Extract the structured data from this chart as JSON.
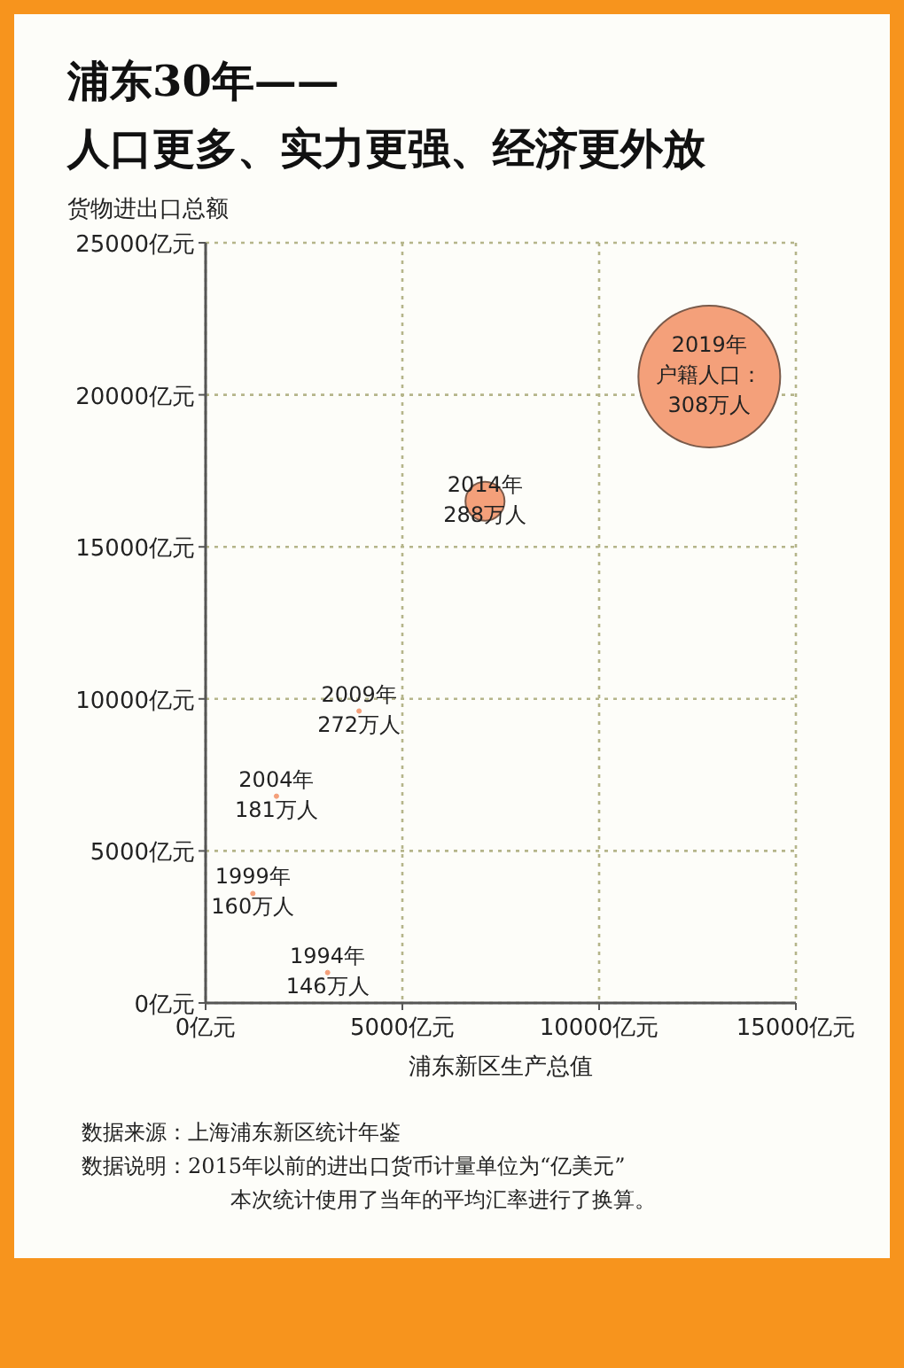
{
  "chart_data": {
    "type": "bubble",
    "title": "浦东30年——",
    "subtitle": "人口更多、实力更强、经济更外放",
    "xlabel": "浦东新区生产总值",
    "ylabel": "货物进出口总额",
    "xlim": [
      0,
      15000
    ],
    "ylim": [
      0,
      25000
    ],
    "xticks": [
      {
        "value": 0,
        "label": "0亿元"
      },
      {
        "value": 5000,
        "label": "5000亿元"
      },
      {
        "value": 10000,
        "label": "10000亿元"
      },
      {
        "value": 15000,
        "label": "15000亿元"
      }
    ],
    "yticks": [
      {
        "value": 0,
        "label": "0亿元"
      },
      {
        "value": 5000,
        "label": "5000亿元"
      },
      {
        "value": 10000,
        "label": "10000亿元"
      },
      {
        "value": 15000,
        "label": "15000亿元"
      },
      {
        "value": 20000,
        "label": "20000亿元"
      },
      {
        "value": 25000,
        "label": "25000亿元"
      }
    ],
    "grid": true,
    "series": [
      {
        "color": "#f4a07a",
        "x": [
          3100,
          1200,
          1800,
          3900,
          7100,
          12800
        ],
        "values": [
          1000,
          3600,
          6800,
          9600,
          16500,
          20600
        ],
        "sizes": [
          0.001,
          0.001,
          0.001,
          0.001,
          0.076,
          1
        ]
      }
    ],
    "annotations": [
      {
        "text": "1994年146万人",
        "x": 3100,
        "y": 1000
      },
      {
        "text": "1999年160万人",
        "x": 1200,
        "y": 3600
      },
      {
        "text": "2004年181万人",
        "x": 1800,
        "y": 6800
      },
      {
        "text": "2009年272万人",
        "x": 3900,
        "y": 9600
      },
      {
        "text": "2014年288万人",
        "x": 7100,
        "y": 16500
      },
      {
        "text": "2019年户籍人口：308万人",
        "x": 12800,
        "y": 20600
      },
      "数据来源：上海浦东新区统计年鉴",
      "数据说明：2015年以前的进出口货币计量单位为“亿美元”\n本次统计使用了当年的平均汇率进行了换算。"
    ]
  }
}
